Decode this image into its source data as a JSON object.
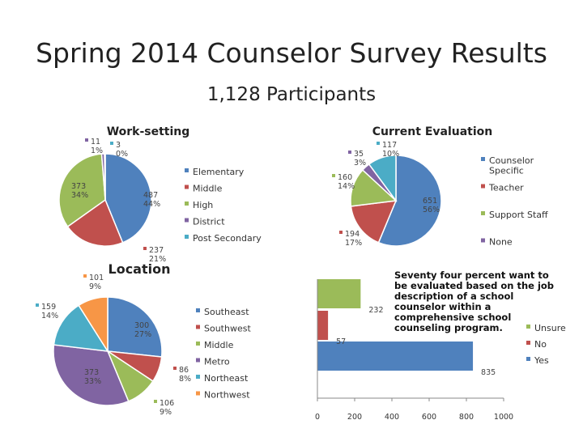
{
  "page": {
    "title": "Spring 2014 Counselor Survey Results",
    "subtitle": "1,128 Participants",
    "note": "Seventy four percent want to be evaluated based on the job description of a school counselor within a comprehensive school counseling program."
  },
  "chart_data": [
    {
      "type": "pie",
      "title": "Work-setting",
      "series": [
        {
          "name": "Elementary",
          "value": 487,
          "label": "487\n44%",
          "color": "#4f81bd"
        },
        {
          "name": "Middle",
          "value": 237,
          "label": "237\n21%",
          "color": "#c0504d"
        },
        {
          "name": "High",
          "value": 373,
          "label": "373\n34%",
          "color": "#9bbb59"
        },
        {
          "name": "District",
          "value": 11,
          "label": "11\n1%",
          "color": "#8064a2"
        },
        {
          "name": "Post Secondary",
          "value": 3,
          "label": "3\n0%",
          "color": "#4bacc6"
        }
      ]
    },
    {
      "type": "pie",
      "title": "Current Evaluation",
      "series": [
        {
          "name": "Counselor Specific",
          "value": 651,
          "label": "651\n56%",
          "color": "#4f81bd"
        },
        {
          "name": "Teacher",
          "value": 194,
          "label": "194\n17%",
          "color": "#c0504d"
        },
        {
          "name": "Support Staff",
          "value": 160,
          "label": "160\n14%",
          "color": "#9bbb59"
        },
        {
          "name": "None",
          "value": 35,
          "label": "35\n3%",
          "color": "#8064a2"
        },
        {
          "name": "",
          "value": 117,
          "label": "117\n10%",
          "color": "#4bacc6"
        }
      ]
    },
    {
      "type": "pie",
      "title": "Location",
      "series": [
        {
          "name": "Southeast",
          "value": 300,
          "label": "300\n27%",
          "color": "#4f81bd"
        },
        {
          "name": "Southwest",
          "value": 86,
          "label": "86\n8%",
          "color": "#c0504d"
        },
        {
          "name": "Middle",
          "value": 106,
          "label": "106\n9%",
          "color": "#9bbb59"
        },
        {
          "name": "Metro",
          "value": 373,
          "label": "373\n33%",
          "color": "#8064a2"
        },
        {
          "name": "Northeast",
          "value": 159,
          "label": "159\n14%",
          "color": "#4bacc6"
        },
        {
          "name": "Northwest",
          "value": 101,
          "label": "101\n9%",
          "color": "#f79646"
        }
      ]
    },
    {
      "type": "bar",
      "orientation": "horizontal",
      "categories": [
        "Yes",
        "No",
        "Unsure"
      ],
      "values": [
        835,
        57,
        232
      ],
      "colors": [
        "#4f81bd",
        "#c0504d",
        "#9bbb59"
      ],
      "xlim": [
        0,
        1000
      ],
      "xticks": [
        "0",
        "200",
        "400",
        "600",
        "800",
        "1000"
      ],
      "legend": [
        "Unsure",
        "No",
        "Yes"
      ]
    }
  ]
}
